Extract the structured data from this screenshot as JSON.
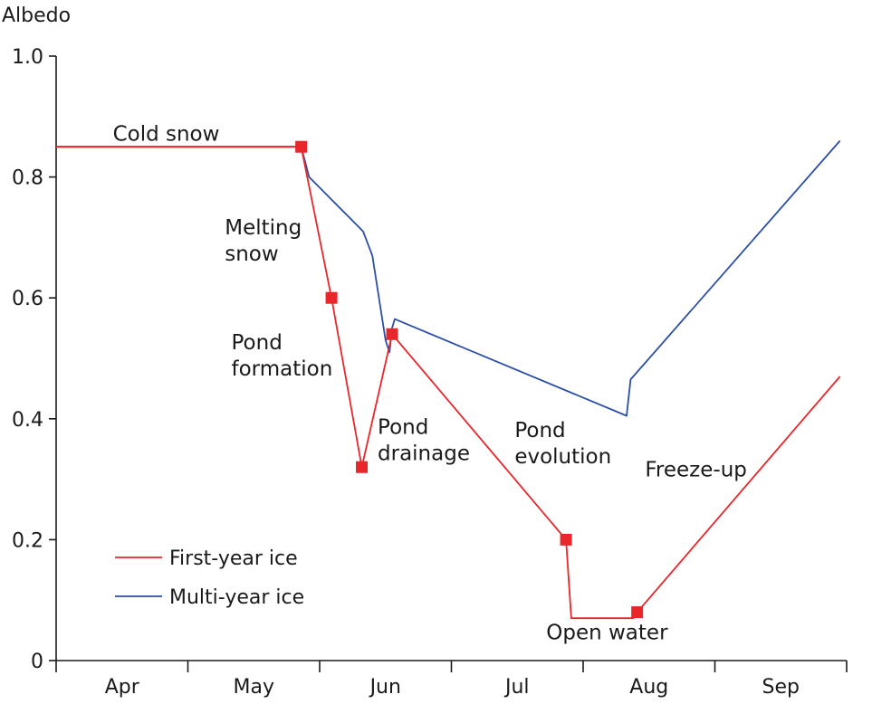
{
  "chart_data": {
    "type": "line",
    "title": "",
    "ylabel": "Albedo",
    "xlabel": "",
    "ylim": [
      0,
      1.0
    ],
    "yticks": [
      {
        "value": 0,
        "label": "0"
      },
      {
        "value": 0.2,
        "label": "0.2"
      },
      {
        "value": 0.4,
        "label": "0.4"
      },
      {
        "value": 0.6,
        "label": "0.6"
      },
      {
        "value": 0.8,
        "label": "0.8"
      },
      {
        "value": 1.0,
        "label": "1.0"
      }
    ],
    "xlim": [
      0,
      6
    ],
    "months": [
      "Apr",
      "May",
      "Jun",
      "Jul",
      "Aug",
      "Sep"
    ],
    "grid": false,
    "legend_position": "bottom-left",
    "series": [
      {
        "name": "First-year ice",
        "color": "#e8262b",
        "points": [
          [
            0,
            0.85
          ],
          [
            1.86,
            0.85
          ],
          [
            2.09,
            0.6
          ],
          [
            2.32,
            0.32
          ],
          [
            2.55,
            0.54
          ],
          [
            3.87,
            0.2
          ],
          [
            3.91,
            0.07
          ],
          [
            4.38,
            0.07
          ],
          [
            4.41,
            0.08
          ],
          [
            5.95,
            0.47
          ]
        ],
        "markers": [
          [
            1.86,
            0.85
          ],
          [
            2.09,
            0.6
          ],
          [
            2.32,
            0.32
          ],
          [
            2.55,
            0.54
          ],
          [
            3.87,
            0.2
          ],
          [
            4.41,
            0.08
          ]
        ]
      },
      {
        "name": "Multi-year ice",
        "color": "#2a4fa3",
        "points": [
          [
            0,
            0.85
          ],
          [
            1.86,
            0.85
          ],
          [
            1.92,
            0.8
          ],
          [
            2.33,
            0.71
          ],
          [
            2.4,
            0.67
          ],
          [
            2.5,
            0.53
          ],
          [
            2.53,
            0.51
          ],
          [
            2.55,
            0.55
          ],
          [
            2.57,
            0.565
          ],
          [
            4.33,
            0.405
          ],
          [
            4.36,
            0.465
          ],
          [
            5.95,
            0.86
          ]
        ]
      }
    ],
    "annotations": [
      {
        "lines": [
          "Cold snow"
        ],
        "x": 0.43,
        "y": 0.86
      },
      {
        "lines": [
          "Melting",
          "snow"
        ],
        "x": 1.28,
        "y": 0.705
      },
      {
        "lines": [
          "Pond",
          "formation"
        ],
        "x": 1.33,
        "y": 0.515
      },
      {
        "lines": [
          "Pond",
          "drainage"
        ],
        "x": 2.44,
        "y": 0.375
      },
      {
        "lines": [
          "Pond",
          "evolution"
        ],
        "x": 3.48,
        "y": 0.37
      },
      {
        "lines": [
          "Freeze-up"
        ],
        "x": 4.47,
        "y": 0.305
      },
      {
        "lines": [
          "Open water"
        ],
        "x": 3.72,
        "y": 0.035
      }
    ]
  }
}
